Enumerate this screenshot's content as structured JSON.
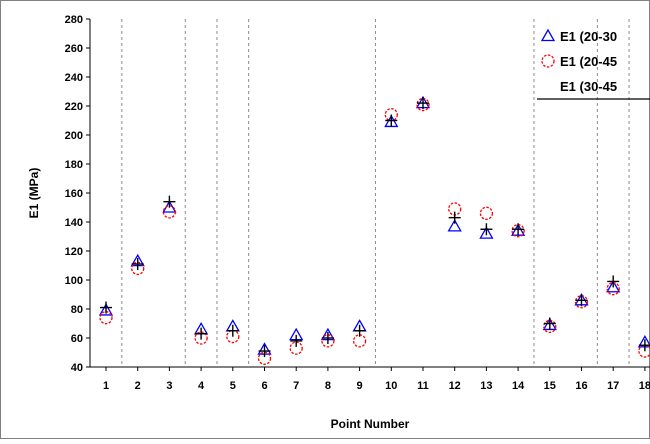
{
  "chart_data": {
    "type": "scatter",
    "xlabel": "Point Number",
    "ylabel": "E1 (MPa)",
    "ylim": [
      40,
      280
    ],
    "y_ticks": [
      "40",
      "60",
      "80",
      "100",
      "120",
      "140",
      "160",
      "180",
      "200",
      "220",
      "240",
      "260",
      "280"
    ],
    "x_ticks": [
      "1",
      "2",
      "3",
      "4",
      "5",
      "6",
      "7",
      "8",
      "9",
      "10",
      "11",
      "12",
      "13",
      "14",
      "15",
      "16",
      "17",
      "18"
    ],
    "x_ticks_values": [
      1,
      2,
      3,
      4,
      5,
      6,
      7,
      8,
      9,
      10,
      11,
      12,
      13,
      14,
      15,
      16,
      17,
      18
    ],
    "vertical_separators_after": [
      1.5,
      3.5,
      4.5,
      5.5,
      9.5,
      14.5,
      16.5,
      17.5
    ],
    "grid": false,
    "legend_position": "top-right",
    "series": [
      {
        "name": "E1 (20-30",
        "marker": "triangle",
        "color": "#0000ff",
        "x": [
          1,
          2,
          3,
          4,
          5,
          6,
          7,
          8,
          9,
          10,
          11,
          12,
          13,
          14,
          15,
          16,
          17,
          18
        ],
        "values": [
          79,
          113,
          150,
          66,
          68,
          52,
          62,
          62,
          68,
          209,
          222,
          137,
          132,
          134,
          69,
          86,
          95,
          57
        ]
      },
      {
        "name": "E1 (20-45",
        "marker": "circle",
        "color": "#ff0000",
        "x": [
          1,
          2,
          3,
          4,
          5,
          6,
          7,
          8,
          9,
          10,
          11,
          12,
          13,
          14,
          15,
          16,
          17,
          18
        ],
        "values": [
          74,
          108,
          147,
          60,
          61,
          46,
          53,
          58,
          58,
          214,
          221,
          149,
          146,
          134,
          68,
          85,
          94,
          51
        ]
      },
      {
        "name": "E1 (30-45",
        "marker": "plus",
        "color": "#000000",
        "x": [
          1,
          2,
          3,
          4,
          5,
          6,
          7,
          8,
          9,
          10,
          11,
          12,
          13,
          14,
          15,
          16,
          17,
          18
        ],
        "values": [
          81,
          111,
          154,
          63,
          65,
          51,
          58,
          60,
          65,
          210,
          222,
          143,
          135,
          135,
          70,
          86,
          99,
          55
        ]
      }
    ]
  }
}
